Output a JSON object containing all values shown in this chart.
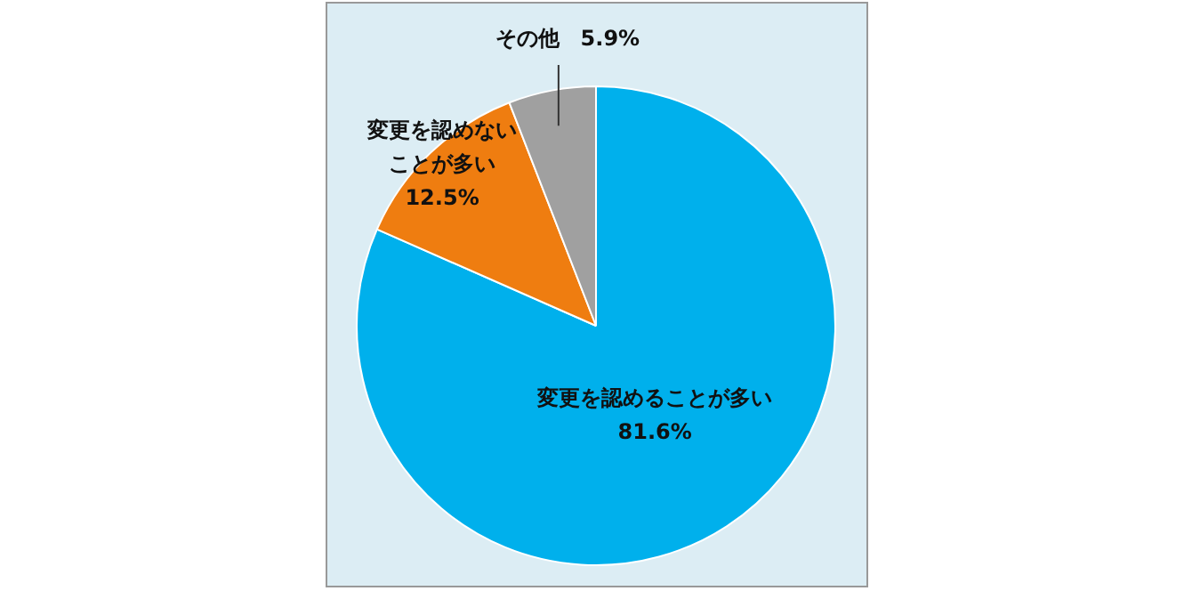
{
  "chart_data": {
    "type": "pie",
    "categories": [
      "変更を認めることが多い",
      "変更を認めないことが多い",
      "その他"
    ],
    "values": [
      81.6,
      12.5,
      5.9
    ],
    "colors": [
      "#00b0ec",
      "#ef7d10",
      "#a0a0a0"
    ],
    "value_labels": [
      "81.6%",
      "12.5%",
      "5.9%"
    ],
    "legend": false
  }
}
